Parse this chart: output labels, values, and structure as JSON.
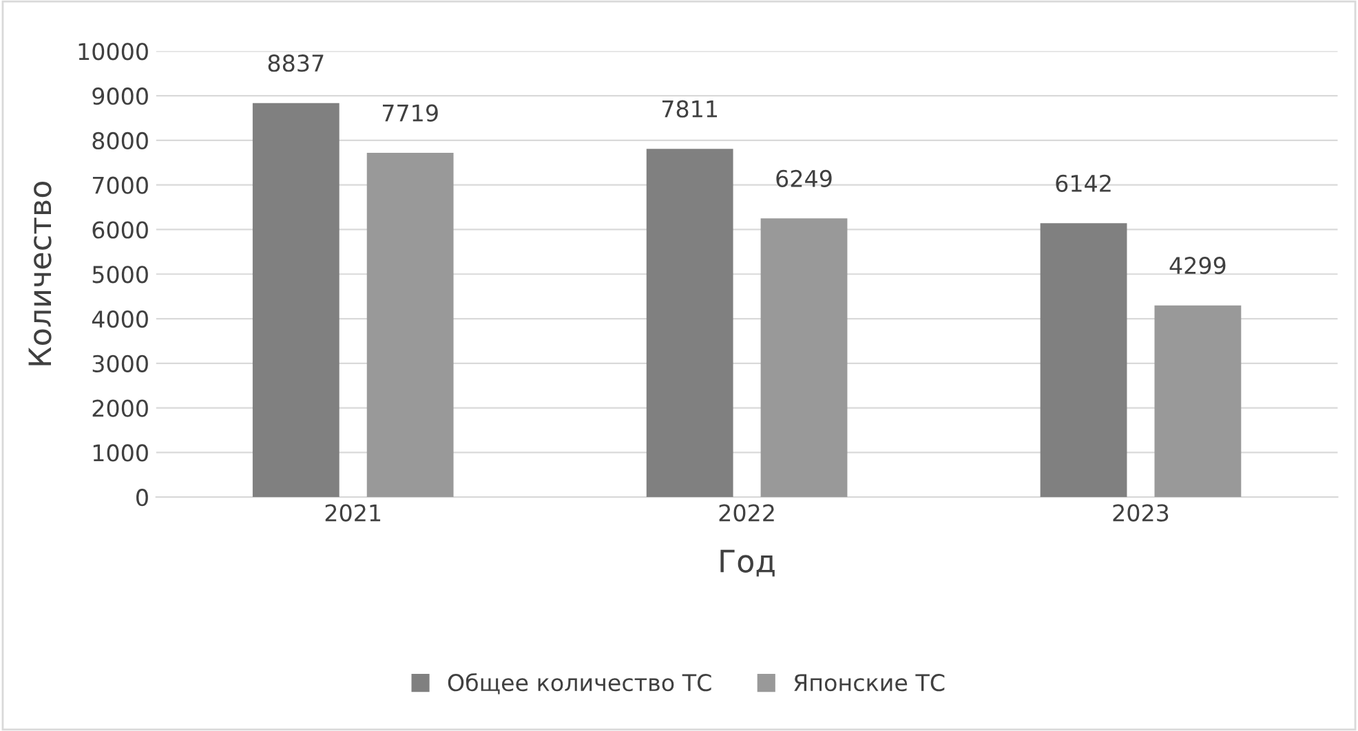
{
  "chart_data": {
    "type": "bar",
    "xlabel": "Год",
    "ylabel": "Количество",
    "categories": [
      "2021",
      "2022",
      "2023"
    ],
    "series": [
      {
        "name": "Общее количество ТС",
        "color": "#808080",
        "values": [
          8837,
          7811,
          6142
        ]
      },
      {
        "name": "Японские ТС",
        "color": "#999999",
        "values": [
          7719,
          6249,
          4299
        ]
      }
    ],
    "ylim": [
      0,
      10000
    ],
    "yticks": [
      0,
      1000,
      2000,
      3000,
      4000,
      5000,
      6000,
      7000,
      8000,
      9000,
      10000
    ],
    "grid": "y",
    "legend": "bottom",
    "data_labels": true
  }
}
